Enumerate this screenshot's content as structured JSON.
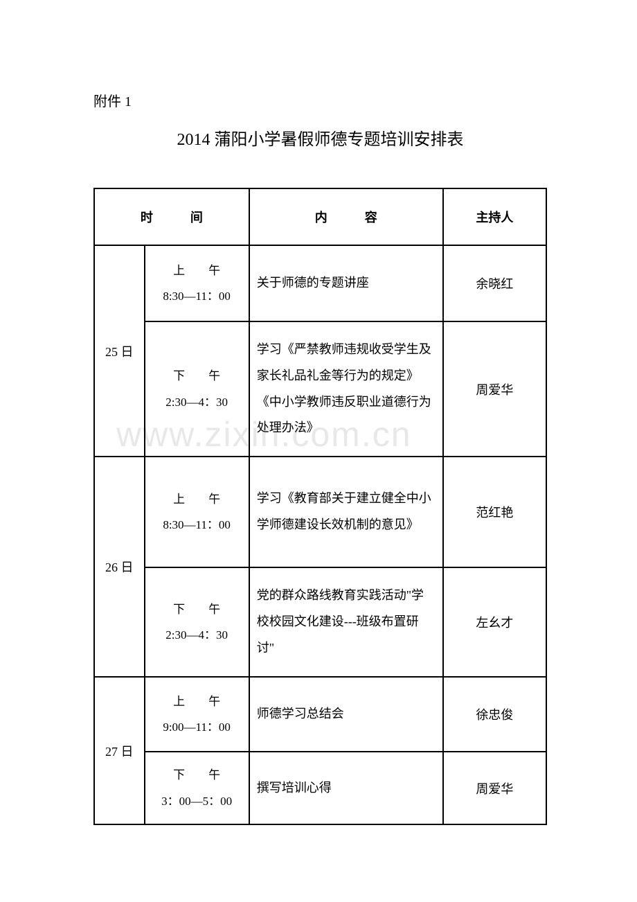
{
  "document": {
    "attachment_label": "附件 1",
    "title": "2014 蒲阳小学暑假师德专题培训安排表",
    "watermark": "www.zixin.com.cn",
    "headers": {
      "time": "时　　　间",
      "content": "内　　　容",
      "host": "主持人"
    },
    "colors": {
      "background": "#ffffff",
      "text": "#000000",
      "border": "#000000",
      "watermark": "#e8e8e8"
    },
    "schedule": [
      {
        "date": "25 日",
        "sessions": [
          {
            "period": "上　　午",
            "time": "8:30—11：00",
            "content": "关于师德的专题讲座",
            "host": "余晓红"
          },
          {
            "period": "下　　午",
            "time": "2:30—4：30",
            "content": "学习《严禁教师违规收受学生及家长礼品礼金等行为的规定》《中小学教师违反职业道德行为处理办法》",
            "host": "周爱华"
          }
        ]
      },
      {
        "date": "26 日",
        "sessions": [
          {
            "period": "上　　午",
            "time": "8:30—11：00",
            "content": "学习《教育部关于建立健全中小学师德建设长效机制的意见》",
            "host": "范红艳"
          },
          {
            "period": "下　　午",
            "time": "2:30—4：30",
            "content": "党的群众路线教育实践活动\"学校校园文化建设---班级布置研讨\"",
            "host": "左幺才"
          }
        ]
      },
      {
        "date": "27 日",
        "sessions": [
          {
            "period": "上　　午",
            "time": "9:00—11：00",
            "content": "师德学习总结会",
            "host": "徐忠俊"
          },
          {
            "period": "下　　午",
            "time": "3：00—5：00",
            "content": "撰写培训心得",
            "host": "周爱华"
          }
        ]
      }
    ]
  }
}
